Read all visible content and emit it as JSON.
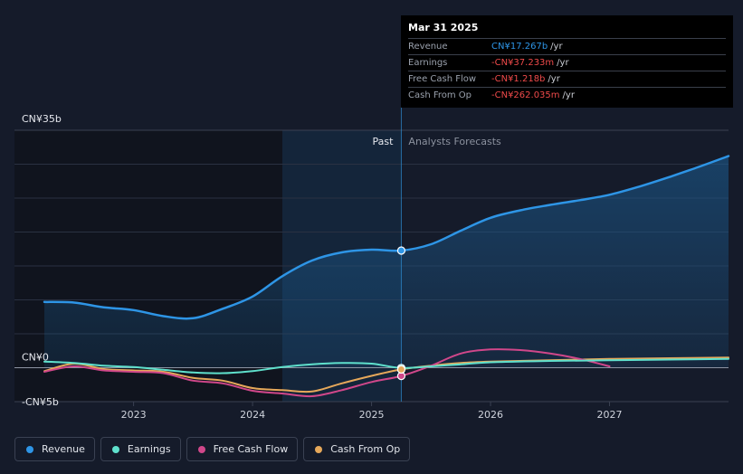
{
  "tooltip": {
    "date": "Mar 31 2025",
    "rows": [
      {
        "label": "Revenue",
        "value": "CN¥17.267b",
        "unit": "/yr",
        "color": "#2e95e6"
      },
      {
        "label": "Earnings",
        "value": "-CN¥37.233m",
        "unit": "/yr",
        "color": "#ef4a4a"
      },
      {
        "label": "Free Cash Flow",
        "value": "-CN¥1.218b",
        "unit": "/yr",
        "color": "#ef4a4a"
      },
      {
        "label": "Cash From Op",
        "value": "-CN¥262.035m",
        "unit": "/yr",
        "color": "#ef4a4a"
      }
    ]
  },
  "legend": [
    {
      "label": "Revenue",
      "color": "#2e95e6"
    },
    {
      "label": "Earnings",
      "color": "#5fe0cc"
    },
    {
      "label": "Free Cash Flow",
      "color": "#d0478a"
    },
    {
      "label": "Cash From Op",
      "color": "#e6a85a"
    }
  ],
  "chart_data": {
    "type": "line",
    "ylim": [
      -5,
      35
    ],
    "yticks": [
      {
        "label": "CN¥35b",
        "value": 35
      },
      {
        "label": "CN¥0",
        "value": 0
      },
      {
        "label": "-CN¥5b",
        "value": -5
      }
    ],
    "xlim": [
      2022.25,
      2028.0
    ],
    "xticks": [
      {
        "label": "2023",
        "value": 2023
      },
      {
        "label": "2024",
        "value": 2024
      },
      {
        "label": "2025",
        "value": 2025
      },
      {
        "label": "2026",
        "value": 2026
      },
      {
        "label": "2027",
        "value": 2027
      }
    ],
    "divider_x": 2025.25,
    "highlight_start_x": 2024.25,
    "past_label": "Past",
    "forecast_label": "Analysts Forecasts",
    "series": [
      {
        "name": "Revenue",
        "color": "#2e95e6",
        "x": [
          2022.25,
          2022.5,
          2022.75,
          2023.0,
          2023.25,
          2023.5,
          2023.75,
          2024.0,
          2024.25,
          2024.5,
          2024.75,
          2025.0,
          2025.25,
          2025.5,
          2025.75,
          2026.0,
          2026.25,
          2026.5,
          2026.75,
          2027.0,
          2027.25,
          2027.5,
          2027.75,
          2028.0
        ],
        "y": [
          9.7,
          9.6,
          8.9,
          8.5,
          7.6,
          7.3,
          8.7,
          10.5,
          13.5,
          15.8,
          17.0,
          17.4,
          17.27,
          18.2,
          20.2,
          22.1,
          23.2,
          24.0,
          24.7,
          25.5,
          26.7,
          28.1,
          29.6,
          31.2
        ]
      },
      {
        "name": "Earnings",
        "color": "#5fe0cc",
        "x": [
          2022.25,
          2022.5,
          2022.75,
          2023.0,
          2023.25,
          2023.5,
          2023.75,
          2024.0,
          2024.25,
          2024.5,
          2024.75,
          2025.0,
          2025.25,
          2025.5,
          2025.75,
          2026.0,
          2026.5,
          2027.0,
          2027.5,
          2028.0
        ],
        "y": [
          0.9,
          0.7,
          0.3,
          0.1,
          -0.3,
          -0.7,
          -0.8,
          -0.5,
          0.1,
          0.5,
          0.7,
          0.6,
          -0.04,
          0.2,
          0.5,
          0.8,
          1.0,
          1.1,
          1.2,
          1.3
        ]
      },
      {
        "name": "Free Cash Flow",
        "color": "#d0478a",
        "x": [
          2022.25,
          2022.5,
          2022.75,
          2023.0,
          2023.25,
          2023.5,
          2023.75,
          2024.0,
          2024.25,
          2024.5,
          2024.75,
          2025.0,
          2025.25,
          2025.5,
          2025.75,
          2026.0,
          2026.25,
          2026.5,
          2026.75,
          2027.0
        ],
        "y": [
          -0.6,
          0.2,
          -0.4,
          -0.6,
          -0.8,
          -1.9,
          -2.3,
          -3.4,
          -3.8,
          -4.2,
          -3.3,
          -2.1,
          -1.22,
          0.3,
          2.1,
          2.7,
          2.6,
          2.1,
          1.3,
          0.2
        ]
      },
      {
        "name": "Cash From Op",
        "color": "#e6a85a",
        "x": [
          2022.25,
          2022.5,
          2022.75,
          2023.0,
          2023.25,
          2023.5,
          2023.75,
          2024.0,
          2024.25,
          2024.5,
          2024.75,
          2025.0,
          2025.25,
          2025.5,
          2025.75,
          2026.0,
          2026.5,
          2027.0,
          2027.5,
          2028.0
        ],
        "y": [
          -0.5,
          0.6,
          -0.2,
          -0.4,
          -0.6,
          -1.5,
          -1.9,
          -3.0,
          -3.3,
          -3.5,
          -2.3,
          -1.2,
          -0.26,
          0.3,
          0.7,
          0.9,
          1.1,
          1.3,
          1.4,
          1.5
        ]
      }
    ],
    "markers": [
      {
        "series": "Revenue",
        "x": 2025.25,
        "y": 17.27
      },
      {
        "series": "Earnings",
        "x": 2025.25,
        "y": -0.04
      },
      {
        "series": "Free Cash Flow",
        "x": 2025.25,
        "y": -1.22
      },
      {
        "series": "Cash From Op",
        "x": 2025.25,
        "y": -0.26
      }
    ]
  }
}
